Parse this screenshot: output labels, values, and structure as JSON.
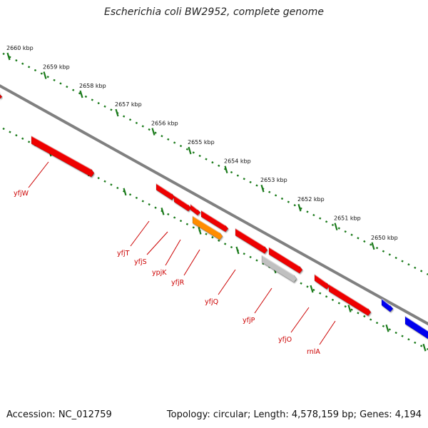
{
  "title": "Escherichia coli BW2952, complete genome",
  "footer": {
    "accession": "Accession: NC_012759",
    "summary": "Topology: circular; Length: 4,578,159 bp; Genes: 4,194"
  },
  "colors": {
    "forward_gene": "#ee0000",
    "rna_gene": "#ff8c00",
    "pseudo_gene": "#c0c0c0",
    "other_strand_gene": "#0000ee",
    "backbone": "#808080",
    "tick": "#1a7a1a",
    "gene_label": "#cc0000"
  },
  "scale": {
    "unit": "kbp",
    "ticks": [
      "2660 kbp",
      "2659 kbp",
      "2658 kbp",
      "2657 kbp",
      "2656 kbp",
      "2655 kbp",
      "2654 kbp",
      "2653 kbp",
      "2652 kbp",
      "2651 kbp",
      "2650 kbp"
    ]
  },
  "genes": [
    {
      "name": "yfjW",
      "type": "forward"
    },
    {
      "name": "yfjT",
      "type": "forward"
    },
    {
      "name": "yfjS",
      "type": "forward"
    },
    {
      "name": "ypjK",
      "type": "forward"
    },
    {
      "name": "yfjR",
      "type": "rna"
    },
    {
      "name": "yfjQ",
      "type": "forward"
    },
    {
      "name": "yfjP",
      "type": "pseudo"
    },
    {
      "name": "yfjO",
      "type": "forward"
    },
    {
      "name": "rnlA",
      "type": "forward"
    }
  ]
}
